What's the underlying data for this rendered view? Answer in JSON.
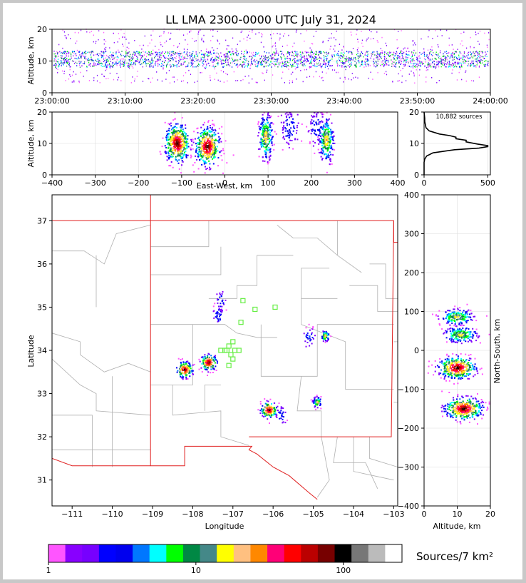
{
  "title": "LL LMA 2300-0000 UTC July 31, 2024",
  "colors": {
    "scale": [
      "#ff55ff",
      "#8800ff",
      "#7700ff",
      "#0000ff",
      "#0000ee",
      "#0077ff",
      "#00ffff",
      "#00ff00",
      "#008844",
      "#448888",
      "#ffff00",
      "#ffc080",
      "#ff8800",
      "#ff0077",
      "#ff0000",
      "#bb0000",
      "#770000",
      "#000000",
      "#777777",
      "#bbbbbb",
      "#ffffff"
    ],
    "border_red": "#e02020",
    "county_gray": "#b0b0b0",
    "station_green": "#66ee44"
  },
  "chart_data": [
    {
      "id": "time-height",
      "type": "scatter",
      "title": "LL LMA 2300-0000 UTC July 31, 2024",
      "ylabel": "Altitude, km",
      "xlabel": "",
      "xlim": [
        "23:00:00",
        "24:00:00"
      ],
      "ylim": [
        0,
        20
      ],
      "x_ticks": [
        "23:00:00",
        "23:10:00",
        "23:20:00",
        "23:30:00",
        "23:40:00",
        "23:50:00",
        "24:00:00"
      ],
      "y_ticks": [
        0,
        10,
        20
      ],
      "grid": true,
      "density": {
        "altitude_core_km": [
          8,
          13
        ],
        "altitude_spread_km": [
          3,
          20
        ]
      }
    },
    {
      "id": "ew-altitude",
      "type": "scatter",
      "xlabel": "East-West, km",
      "ylabel": "Altitude, km",
      "xlim": [
        -400,
        400
      ],
      "ylim": [
        0,
        20
      ],
      "x_ticks": [
        -400,
        -300,
        -200,
        -100,
        0,
        100,
        200,
        300,
        400
      ],
      "y_ticks": [
        0,
        10,
        20
      ],
      "grid": true,
      "clusters": [
        {
          "x": -110,
          "z": 10,
          "note": "dense"
        },
        {
          "x": -40,
          "z": 9,
          "note": "dense"
        },
        {
          "x": 95,
          "z": 12,
          "note": "moderate"
        },
        {
          "x": 150,
          "z": 15,
          "note": "sparse"
        },
        {
          "x": 215,
          "z": 15,
          "note": "sparse"
        },
        {
          "x": 235,
          "z": 11,
          "note": "moderate"
        }
      ]
    },
    {
      "id": "altitude-histogram",
      "type": "line",
      "annotation": "10,882 sources",
      "xlim": [
        0,
        520
      ],
      "ylim": [
        0,
        20
      ],
      "x_ticks": [
        0,
        500
      ],
      "y_ticks": [
        0,
        10,
        20
      ],
      "series": [
        {
          "altitude_km": [
            0,
            4,
            5,
            6,
            7,
            8,
            8.5,
            9,
            9.3,
            9.8,
            10.5,
            11,
            11.5,
            12,
            12.5,
            13,
            14,
            15,
            16,
            17,
            18,
            19,
            20
          ],
          "count": [
            0,
            0,
            5,
            20,
            70,
            240,
            430,
            500,
            500,
            420,
            330,
            330,
            250,
            250,
            200,
            120,
            40,
            15,
            10,
            5,
            5,
            2,
            0
          ]
        }
      ]
    },
    {
      "id": "plan-view",
      "type": "scatter",
      "xlabel": "Longitude",
      "ylabel": "Latitude",
      "xlim": [
        -111.5,
        -102.9
      ],
      "ylim": [
        30.4,
        37.6
      ],
      "x_ticks": [
        -111,
        -110,
        -109,
        -108,
        -107,
        -106,
        -105,
        -104,
        -103
      ],
      "y_ticks": [
        31,
        32,
        33,
        34,
        35,
        36,
        37
      ],
      "clusters": [
        {
          "lon": -108.2,
          "lat": 33.55,
          "note": "dense"
        },
        {
          "lon": -107.6,
          "lat": 33.72,
          "note": "dense"
        },
        {
          "lon": -107.35,
          "lat": 34.8,
          "note": "sparse"
        },
        {
          "lon": -107.3,
          "lat": 35.15,
          "note": "sparse"
        },
        {
          "lon": -106.1,
          "lat": 32.62,
          "note": "dense"
        },
        {
          "lon": -105.8,
          "lat": 32.5,
          "note": "sparse"
        },
        {
          "lon": -104.9,
          "lat": 32.8,
          "note": "moderate"
        },
        {
          "lon": -104.7,
          "lat": 34.33,
          "note": "moderate"
        },
        {
          "lon": -105.1,
          "lat": 34.3,
          "note": "sparse"
        }
      ],
      "stations": [
        {
          "lon": -107.2,
          "lat": 34.0
        },
        {
          "lon": -107.1,
          "lat": 34.1
        },
        {
          "lon": -107.0,
          "lat": 34.2
        },
        {
          "lon": -107.05,
          "lat": 33.9
        },
        {
          "lon": -107.0,
          "lat": 33.8
        },
        {
          "lon": -107.1,
          "lat": 33.65
        },
        {
          "lon": -106.85,
          "lat": 34.0
        },
        {
          "lon": -107.3,
          "lat": 34.0
        },
        {
          "lon": -106.8,
          "lat": 34.65
        },
        {
          "lon": -106.75,
          "lat": 35.15
        },
        {
          "lon": -106.45,
          "lat": 34.95
        },
        {
          "lon": -105.95,
          "lat": 35.0
        },
        {
          "lon": -107.15,
          "lat": 34.0
        },
        {
          "lon": -106.95,
          "lat": 34.0
        }
      ]
    },
    {
      "id": "altitude-ns",
      "type": "scatter",
      "xlabel": "Altitude, km",
      "ylabel": "North-South, km",
      "xlim": [
        0,
        20
      ],
      "ylim": [
        -400,
        400
      ],
      "x_ticks": [
        0,
        10,
        20
      ],
      "y_ticks": [
        -400,
        -300,
        -200,
        -100,
        0,
        100,
        200,
        300,
        400
      ],
      "grid": true,
      "clusters": [
        {
          "z": 10,
          "y": 85,
          "note": "moderate"
        },
        {
          "z": 11,
          "y": 40,
          "note": "moderate"
        },
        {
          "z": 10,
          "y": -45,
          "note": "dense"
        },
        {
          "z": 12,
          "y": -150,
          "note": "dense"
        }
      ]
    }
  ],
  "colorbar": {
    "label": "Sources/7 km²",
    "tick_labels": [
      "1",
      "10",
      "100"
    ],
    "tick_values": [
      1,
      10,
      100
    ]
  }
}
